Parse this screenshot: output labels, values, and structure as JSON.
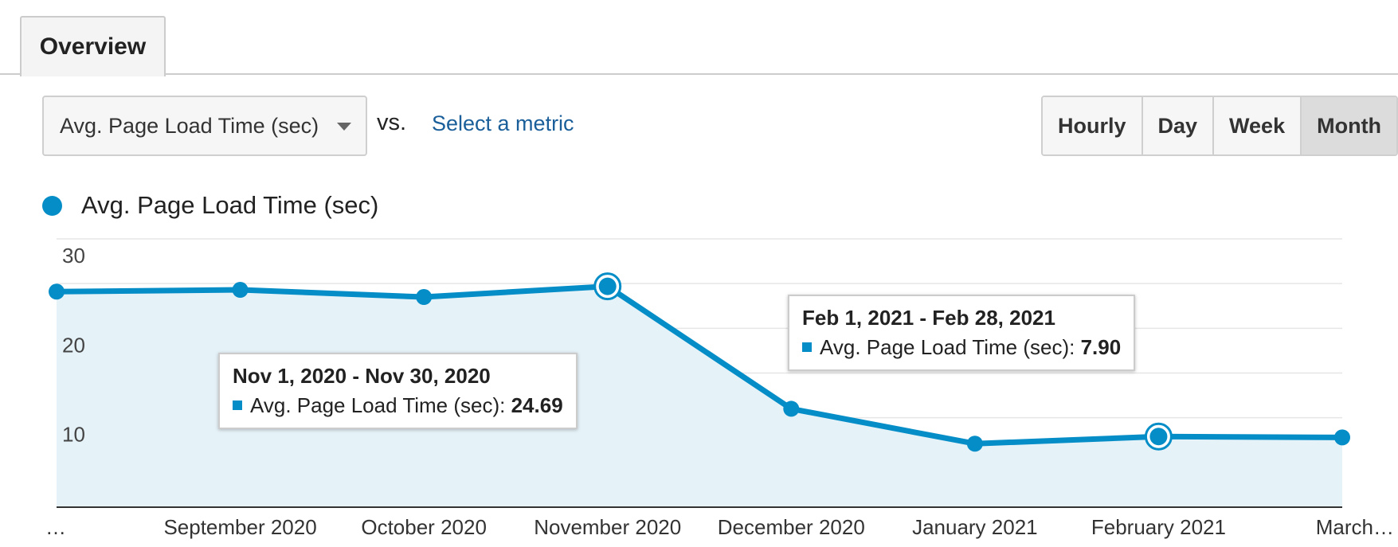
{
  "tabs": [
    {
      "label": "Overview"
    }
  ],
  "controls": {
    "primary_metric": "Avg. Page Load Time (sec)",
    "vs_label": "vs.",
    "secondary_metric_link": "Select a metric",
    "granularity": [
      "Hourly",
      "Day",
      "Week",
      "Month"
    ],
    "granularity_selected": "Month"
  },
  "legend": {
    "label": "Avg. Page Load Time (sec)"
  },
  "tooltips": [
    {
      "title": "Nov 1, 2020 - Nov 30, 2020",
      "metric": "Avg. Page Load Time (sec):",
      "value": "24.69"
    },
    {
      "title": "Feb 1, 2021 - Feb 28, 2021",
      "metric": "Avg. Page Load Time (sec):",
      "value": "7.90"
    }
  ],
  "colors": {
    "series": "#058dc7",
    "area_fill": "#e5f2f8",
    "gridline": "#e6e6e6"
  },
  "chart_data": {
    "type": "area",
    "categories": [
      "…",
      "September 2020",
      "October 2020",
      "November 2020",
      "December 2020",
      "January 2021",
      "February 2021",
      "March…"
    ],
    "series": [
      {
        "name": "Avg. Page Load Time (sec)",
        "values": [
          24.1,
          24.3,
          23.5,
          24.69,
          11.0,
          7.1,
          7.9,
          7.8
        ]
      }
    ],
    "highlighted_indices": [
      3,
      6
    ],
    "yticks": [
      10,
      20,
      30
    ],
    "ylim": [
      0,
      30
    ],
    "grid": true,
    "legend_position": "top-left"
  }
}
